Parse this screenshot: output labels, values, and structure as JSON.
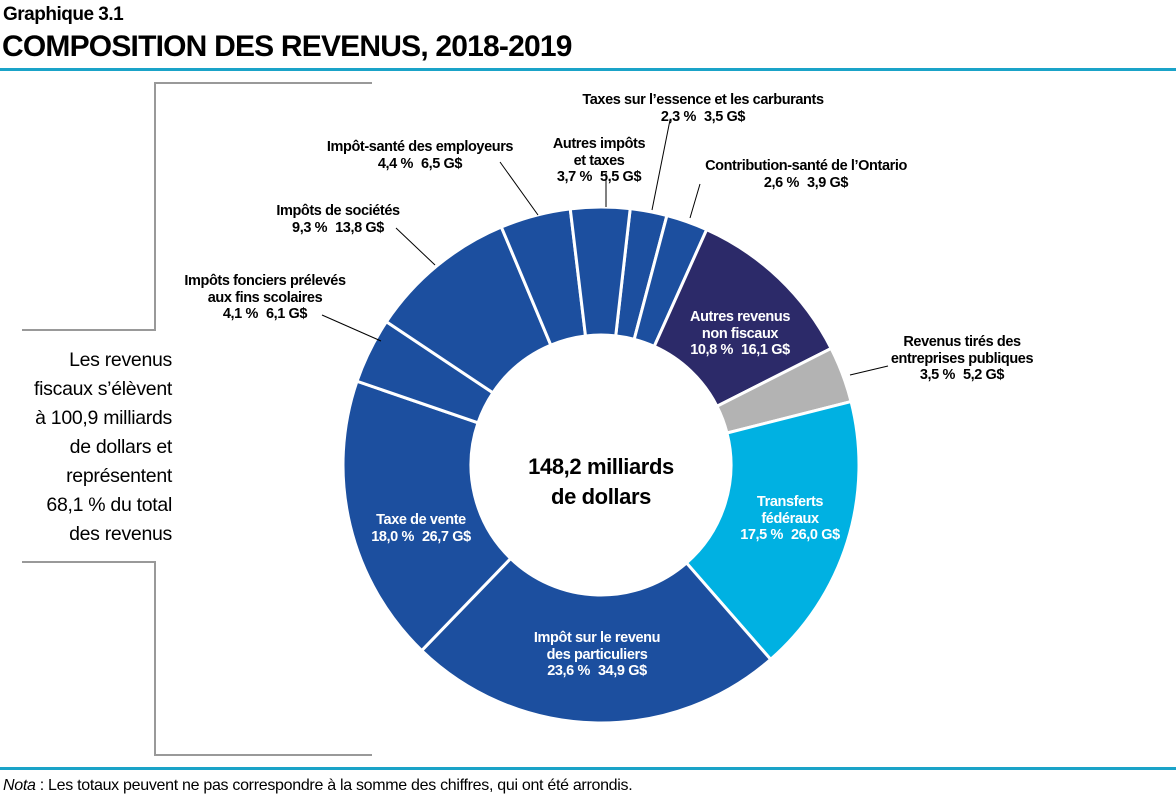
{
  "header": {
    "kicker": "Graphique 3.1",
    "title": "COMPOSITION DES REVENUS, 2018-2019"
  },
  "side_note": [
    "Les revenus",
    "fiscaux s’élèvent",
    "à 100,9 milliards",
    "de dollars et",
    "représentent",
    "68,1 % du total",
    "des revenus"
  ],
  "note": {
    "label": "Nota",
    "text": " : Les totaux peuvent ne pas correspondre à la somme des chiffres, qui ont été arrondis."
  },
  "chart_data": {
    "type": "pie",
    "donut": true,
    "center_label": [
      "148,2 milliards",
      "de dollars"
    ],
    "unit": "G$",
    "slices": [
      {
        "label": [
          "Taxes sur l’essence et les carburants"
        ],
        "percent": "2,3 %",
        "value_text": "3,5 G$",
        "share": 2.3,
        "value": 3.5,
        "color": "#1c4f9f"
      },
      {
        "label": [
          "Contribution-santé de l’Ontario"
        ],
        "percent": "2,6 %",
        "value_text": "3,9 G$",
        "share": 2.6,
        "value": 3.9,
        "color": "#1c4f9f"
      },
      {
        "label": [
          "Autres revenus",
          "non fiscaux"
        ],
        "percent": "10,8 %",
        "value_text": "16,1 G$",
        "share": 10.8,
        "value": 16.1,
        "color": "#2c2a69"
      },
      {
        "label": [
          "Revenus tirés des",
          "entreprises publiques"
        ],
        "percent": "3,5 %",
        "value_text": "5,2 G$",
        "share": 3.5,
        "value": 5.2,
        "color": "#b3b3b3"
      },
      {
        "label": [
          "Transferts",
          "fédéraux"
        ],
        "percent": "17,5 %",
        "value_text": "26,0 G$",
        "share": 17.5,
        "value": 26.0,
        "color": "#00b1e2"
      },
      {
        "label": [
          "Impôt sur le revenu",
          "des particuliers"
        ],
        "percent": "23,6 %",
        "value_text": "34,9 G$",
        "share": 23.6,
        "value": 34.9,
        "color": "#1c4f9f"
      },
      {
        "label": [
          "Taxe de vente"
        ],
        "percent": "18,0 %",
        "value_text": "26,7 G$",
        "share": 18.0,
        "value": 26.7,
        "color": "#1c4f9f"
      },
      {
        "label": [
          "Impôts fonciers prélevés",
          "aux fins scolaires"
        ],
        "percent": "4,1 %",
        "value_text": "6,1 G$",
        "share": 4.1,
        "value": 6.1,
        "color": "#1c4f9f"
      },
      {
        "label": [
          "Impôts de sociétés"
        ],
        "percent": "9,3 %",
        "value_text": "13,8 G$",
        "share": 9.3,
        "value": 13.8,
        "color": "#1c4f9f"
      },
      {
        "label": [
          "Impôt-santé des employeurs"
        ],
        "percent": "4,4 %",
        "value_text": "6,5 G$",
        "share": 4.4,
        "value": 6.5,
        "color": "#1c4f9f"
      },
      {
        "label": [
          "Autres impôts",
          "et taxes"
        ],
        "percent": "3,7 %",
        "value_text": "5,5 G$",
        "share": 3.7,
        "value": 5.5,
        "color": "#1c4f9f"
      }
    ]
  }
}
